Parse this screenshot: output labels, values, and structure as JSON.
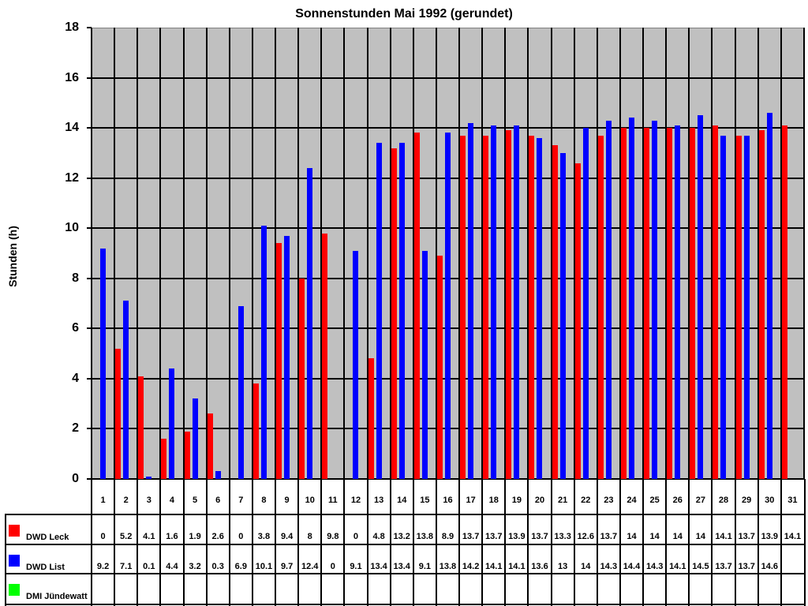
{
  "chart_data": {
    "type": "bar",
    "title": "Sonnenstunden Mai 1992 (gerundet)",
    "xlabel": "",
    "ylabel": "Stunden (h)",
    "ylim": [
      0,
      18
    ],
    "yticks": [
      0,
      2,
      4,
      6,
      8,
      10,
      12,
      14,
      16,
      18
    ],
    "grid": true,
    "legend_position": "bottom data table",
    "categories": [
      "1",
      "2",
      "3",
      "4",
      "5",
      "6",
      "7",
      "8",
      "9",
      "10",
      "11",
      "12",
      "13",
      "14",
      "15",
      "16",
      "17",
      "18",
      "19",
      "20",
      "21",
      "22",
      "23",
      "24",
      "25",
      "26",
      "27",
      "28",
      "29",
      "30",
      "31"
    ],
    "series": [
      {
        "name": "DWD Leck",
        "color": "#ff0000",
        "values": [
          0,
          5.2,
          4.1,
          1.6,
          1.9,
          2.6,
          0,
          3.8,
          9.4,
          8,
          9.8,
          0,
          4.8,
          13.2,
          13.8,
          8.9,
          13.7,
          13.7,
          13.9,
          13.7,
          13.3,
          12.6,
          13.7,
          14,
          14,
          14,
          14,
          14.1,
          13.7,
          13.9,
          14.1
        ]
      },
      {
        "name": "DWD List",
        "color": "#0000ff",
        "values": [
          9.2,
          7.1,
          0.1,
          4.4,
          3.2,
          0.3,
          6.9,
          10.1,
          9.7,
          12.4,
          0,
          9.1,
          13.4,
          13.4,
          9.1,
          13.8,
          14.2,
          14.1,
          14.1,
          13.6,
          13,
          14,
          14.3,
          14.4,
          14.3,
          14.1,
          14.5,
          13.7,
          13.7,
          14.6,
          null
        ]
      },
      {
        "name": "DMI Jündewatt",
        "color": "#00ff00",
        "values": [
          null,
          null,
          null,
          null,
          null,
          null,
          null,
          null,
          null,
          null,
          null,
          null,
          null,
          null,
          null,
          null,
          null,
          null,
          null,
          null,
          null,
          null,
          null,
          null,
          null,
          null,
          null,
          null,
          null,
          null,
          null
        ]
      }
    ],
    "table_text": {
      "DWD Leck": [
        "0",
        "5.2",
        "4.1",
        "1.6",
        "1.9",
        "2.6",
        "0",
        "3.8",
        "9.4",
        "8",
        "9.8",
        "0",
        "4.8",
        "13.2",
        "13.8",
        "8.9",
        "13.7",
        "13.7",
        "13.9",
        "13.7",
        "13.3",
        "12.6",
        "13.7",
        "14",
        "14",
        "14",
        "14",
        "14.1",
        "13.7",
        "13.9",
        "14.1"
      ],
      "DWD List": [
        "9.2",
        "7.1",
        "0.1",
        "4.4",
        "3.2",
        "0.3",
        "6.9",
        "10.1",
        "9.7",
        "12.4",
        "0",
        "9.1",
        "13.4",
        "13.4",
        "9.1",
        "13.8",
        "14.2",
        "14.1",
        "14.1",
        "13.6",
        "13",
        "14",
        "14.3",
        "14.4",
        "14.3",
        "14.1",
        "14.5",
        "13.7",
        "13.7",
        "14.6",
        ""
      ],
      "DMI Jündewatt": [
        "",
        "",
        "",
        "",
        "",
        "",
        "",
        "",
        "",
        "",
        "",
        "",
        "",
        "",
        "",
        "",
        "",
        "",
        "",
        "",
        "",
        "",
        "",
        "",
        "",
        "",
        "",
        "",
        "",
        "",
        ""
      ]
    }
  },
  "colors": {
    "plot_background": "#c0c0c0",
    "grid": "#000000"
  }
}
